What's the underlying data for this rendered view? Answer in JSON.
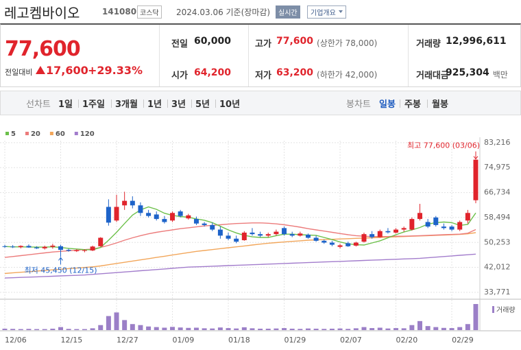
{
  "header": {
    "name": "레고켐바이오",
    "code": "141080",
    "market": "코스닥",
    "date": "2024.03.06 기준(장마감)",
    "realtime": "실시간",
    "company_info": "기업개요"
  },
  "quote": {
    "price": "77,600",
    "change_label": "전일대비",
    "change": "17,600",
    "change_pct": "+29.33%",
    "fields": [
      {
        "label": "전일",
        "value": "60,000"
      },
      {
        "label": "고가",
        "value": "77,600",
        "note": "(상한가 78,000)",
        "color": "#e0242c"
      },
      {
        "label": "거래량",
        "value": "12,996,611"
      },
      {
        "label": "시가",
        "value": "64,200",
        "color": "#e0242c"
      },
      {
        "label": "저가",
        "value": "63,200",
        "note": "(하한가 42,000)",
        "color": "#e0242c"
      },
      {
        "label": "거래대금",
        "value": "925,304",
        "note": "백만"
      }
    ]
  },
  "tabs": {
    "line": [
      "선차트",
      "1일",
      "1주일",
      "3개월",
      "1년",
      "3년",
      "5년",
      "10년"
    ],
    "candle": [
      "봉차트",
      "일봉",
      "주봉",
      "월봉"
    ],
    "candle_active": 1
  },
  "chart_data": {
    "type": "candlestick",
    "categories": [
      "12/06",
      null,
      null,
      null,
      null,
      null,
      null,
      "12/15",
      null,
      null,
      null,
      null,
      null,
      null,
      "12/27",
      null,
      null,
      null,
      null,
      null,
      null,
      "01/09",
      null,
      null,
      null,
      null,
      null,
      null,
      "01/18",
      null,
      null,
      null,
      null,
      null,
      null,
      "01/29",
      null,
      null,
      null,
      null,
      null,
      null,
      "02/07",
      null,
      null,
      null,
      null,
      null,
      null,
      "02/20",
      null,
      null,
      null,
      null,
      null,
      null,
      "02/29",
      null,
      null,
      null
    ],
    "open": [
      49000,
      48900,
      48700,
      49100,
      48600,
      48300,
      48800,
      49000,
      47800,
      47500,
      47500,
      47600,
      49000,
      62000,
      57500,
      62500,
      64000,
      62500,
      60000,
      59500,
      58000,
      57500,
      60500,
      58200,
      58000,
      56500,
      56000,
      54500,
      52500,
      51500,
      51000,
      53500,
      53000,
      52500,
      53000,
      55000,
      53000,
      52500,
      52800,
      51800,
      50800,
      50200,
      48800,
      50000,
      49200,
      50500,
      53000,
      52000,
      54000,
      53500,
      54500,
      54500,
      58000,
      57000,
      58500,
      55500,
      55500,
      54500,
      57500,
      64200
    ],
    "high": [
      49500,
      49400,
      49300,
      49600,
      49000,
      49200,
      49800,
      49500,
      48200,
      48000,
      48000,
      49200,
      52000,
      64500,
      66000,
      67000,
      65500,
      63500,
      61000,
      60500,
      59000,
      60500,
      61000,
      59700,
      58800,
      57000,
      56800,
      55500,
      53500,
      52500,
      54000,
      55000,
      53800,
      53500,
      54500,
      55500,
      53800,
      53800,
      53200,
      52500,
      51200,
      50800,
      49800,
      50500,
      50500,
      53500,
      54000,
      54500,
      55000,
      55000,
      55500,
      58500,
      63000,
      58000,
      59000,
      56500,
      56000,
      57500,
      61000,
      77600
    ],
    "low": [
      48500,
      48400,
      48300,
      48500,
      48100,
      47900,
      48200,
      45450,
      47200,
      47100,
      47000,
      47400,
      48800,
      55800,
      57000,
      61000,
      61500,
      59000,
      58500,
      57500,
      56500,
      57000,
      58500,
      57800,
      56000,
      55500,
      54000,
      51500,
      51000,
      50000,
      50800,
      52500,
      52000,
      52000,
      52500,
      52500,
      52000,
      52200,
      51500,
      50500,
      49800,
      49000,
      48300,
      48800,
      48900,
      50200,
      51500,
      51800,
      53200,
      53200,
      53800,
      54200,
      57500,
      55000,
      55500,
      54500,
      54000,
      54000,
      56500,
      63200
    ],
    "close": [
      48800,
      48700,
      49100,
      48600,
      48300,
      48800,
      49200,
      47800,
      47500,
      47600,
      47700,
      48900,
      51800,
      56800,
      62000,
      64000,
      62500,
      60000,
      59000,
      58000,
      57000,
      60000,
      59000,
      59200,
      56500,
      56000,
      54500,
      52500,
      51500,
      50500,
      53500,
      53000,
      52500,
      53000,
      53800,
      53000,
      52500,
      53200,
      51800,
      50800,
      50200,
      49500,
      49300,
      49000,
      50200,
      53000,
      52000,
      54000,
      53600,
      54500,
      55000,
      58000,
      60000,
      55500,
      56000,
      55000,
      54500,
      57000,
      60000,
      77600
    ],
    "up_color": "#e0242c",
    "down_color": "#1d63c9",
    "ma": [
      {
        "name": "5",
        "color": "#6cc04a",
        "values": [
          48900,
          48800,
          48800,
          48750,
          48700,
          48700,
          48800,
          48600,
          48300,
          48100,
          47900,
          47800,
          48600,
          51000,
          53600,
          56500,
          59300,
          61000,
          62000,
          61200,
          59900,
          59200,
          58800,
          58600,
          58000,
          57600,
          56800,
          55600,
          54400,
          53400,
          52600,
          52100,
          51900,
          51900,
          52500,
          53000,
          53000,
          52800,
          52700,
          52600,
          51900,
          51200,
          50400,
          49800,
          49500,
          49400,
          50100,
          50800,
          51800,
          52800,
          53700,
          54400,
          55200,
          56300,
          56800,
          57000,
          56800,
          55900,
          56200,
          60000
        ]
      },
      {
        "name": "20",
        "color": "#ec7b7b",
        "values": [
          45300,
          45600,
          45900,
          46200,
          46500,
          46800,
          47100,
          47300,
          47500,
          47700,
          47900,
          48100,
          48600,
          49300,
          50100,
          51000,
          51800,
          52500,
          53100,
          53600,
          54000,
          54400,
          54800,
          55100,
          55400,
          55700,
          55900,
          56100,
          56300,
          56500,
          56600,
          56700,
          56700,
          56600,
          56400,
          56100,
          55700,
          55300,
          54800,
          54400,
          54000,
          53600,
          53200,
          52800,
          52500,
          52300,
          52200,
          52200,
          52200,
          52300,
          52300,
          52400,
          52500,
          52600,
          52700,
          52800,
          52900,
          53000,
          53300,
          54500
        ]
      },
      {
        "name": "60",
        "color": "#f2a65a",
        "values": [
          40000,
          40200,
          40400,
          40600,
          40800,
          41000,
          41200,
          41400,
          41600,
          41800,
          42000,
          42200,
          42500,
          42900,
          43300,
          43700,
          44100,
          44500,
          44900,
          45300,
          45700,
          46100,
          46500,
          46900,
          47300,
          47600,
          47900,
          48200,
          48500,
          48800,
          49100,
          49400,
          49700,
          50000,
          50200,
          50400,
          50600,
          50800,
          51000,
          51100,
          51200,
          51300,
          51400,
          51500,
          51600,
          51700,
          51800,
          51900,
          52000,
          52100,
          52200,
          52300,
          52400,
          52500,
          52600,
          52700,
          52800,
          52900,
          53100,
          53500
        ]
      },
      {
        "name": "120",
        "color": "#a27ccc",
        "values": [
          38500,
          38600,
          38700,
          38800,
          38900,
          39000,
          39100,
          39200,
          39300,
          39400,
          39500,
          39700,
          39900,
          40100,
          40300,
          40500,
          40700,
          40900,
          41100,
          41300,
          41500,
          41700,
          41900,
          42100,
          42200,
          42300,
          42400,
          42500,
          42600,
          42700,
          42800,
          42900,
          43000,
          43100,
          43200,
          43300,
          43400,
          43500,
          43600,
          43700,
          43800,
          43900,
          44000,
          44100,
          44200,
          44300,
          44400,
          44500,
          44600,
          44700,
          44800,
          44900,
          45000,
          45200,
          45400,
          45600,
          45800,
          46000,
          46200,
          46400
        ]
      }
    ],
    "volume": [
      700000,
      600000,
      500000,
      600000,
      500000,
      500000,
      700000,
      1500000,
      600000,
      500000,
      500000,
      900000,
      2500000,
      7000000,
      8800000,
      5000000,
      3000000,
      2500000,
      1800000,
      1500000,
      1200000,
      1600000,
      1300000,
      1100000,
      1200000,
      900000,
      800000,
      1300000,
      1000000,
      800000,
      1400000,
      900000,
      700000,
      700000,
      800000,
      1000000,
      700000,
      600000,
      800000,
      700000,
      600000,
      700000,
      800000,
      600000,
      900000,
      1500000,
      1000000,
      1200000,
      800000,
      1000000,
      900000,
      2500000,
      4500000,
      2000000,
      1500000,
      1100000,
      1000000,
      1500000,
      3000000,
      12996611
    ],
    "volume_label": "거래량",
    "volume_color": "#9b7fc7",
    "ylim": [
      31500,
      85000
    ],
    "yticks": [
      {
        "value": 83216,
        "label": "83,216"
      },
      {
        "value": 74975,
        "label": "74,975"
      },
      {
        "value": 66734,
        "label": "66,734"
      },
      {
        "value": 58494,
        "label": "58,494"
      },
      {
        "value": 50253,
        "label": "50,253"
      },
      {
        "value": 42012,
        "label": "42,012"
      },
      {
        "value": 33771,
        "label": "33,771"
      }
    ],
    "grid": true,
    "high_annotation": "최고 77,600 (03/06)",
    "low_annotation": "최저 45,450 (12/15)"
  }
}
